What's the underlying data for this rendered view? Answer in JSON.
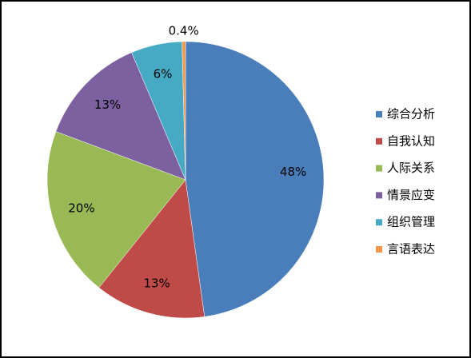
{
  "chart_data": {
    "type": "pie",
    "categories": [
      "综合分析",
      "自我认知",
      "人际关系",
      "情景应变",
      "组织管理",
      "言语表达"
    ],
    "values": [
      48,
      13,
      20,
      13,
      6,
      0.4
    ],
    "value_labels": [
      "48%",
      "13%",
      "20%",
      "13%",
      "6%",
      "0.4%"
    ],
    "colors": [
      "#4a7ebb",
      "#be4b48",
      "#98b954",
      "#7d60a0",
      "#46aac5",
      "#f79646"
    ],
    "legend": "right"
  }
}
